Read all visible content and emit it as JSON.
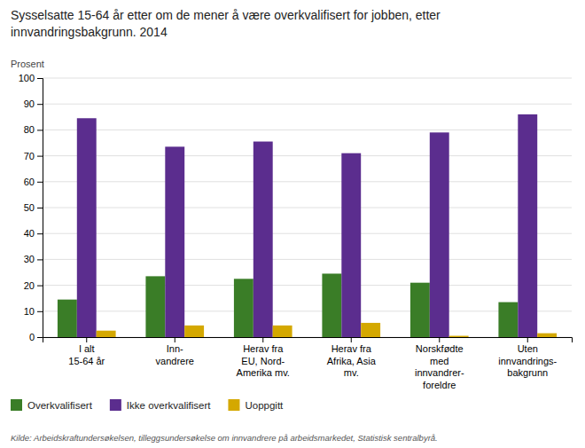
{
  "chart_data": {
    "type": "bar",
    "title": "Sysselsatte 15-64 år etter om de mener å være overkvalifisert for jobben, etter\ninnvandringsbakgrunn. 2014",
    "y_label": "Prosent",
    "source": "Kilde: Arbeidskraftundersøkelsen, tilleggsundersøkelse om innvandrere på arbeidsmarkedet, Statistisk sentralbyrå.",
    "categories": [
      "I alt\n15-64 år",
      "Inn-\nvandrere",
      "Herav fra\nEU, Nord-\nAmerika mv.",
      "Herav fra\nAfrika, Asia\nmv.",
      "Norskfødte\nmed\ninnvandrer-\nforeldre",
      "Uten\ninnvandrings-\nbakgrunn"
    ],
    "series": [
      {
        "name": "Overkvalifisert",
        "color": "#3a7d27",
        "values": [
          14.5,
          23.5,
          22.5,
          24.5,
          21.0,
          13.5
        ]
      },
      {
        "name": "Ikke overkvalifisert",
        "color": "#5b2d8e",
        "values": [
          84.5,
          73.5,
          75.5,
          71.0,
          79.0,
          86.0
        ]
      },
      {
        "name": "Uoppgitt",
        "color": "#d4a800",
        "values": [
          2.5,
          4.5,
          4.5,
          5.5,
          0.5,
          1.5
        ]
      }
    ],
    "ylim": [
      0,
      100
    ],
    "yticks": [
      0,
      10,
      20,
      30,
      40,
      50,
      60,
      70,
      80,
      90,
      100
    ],
    "grid": true,
    "legend": "bottom"
  }
}
